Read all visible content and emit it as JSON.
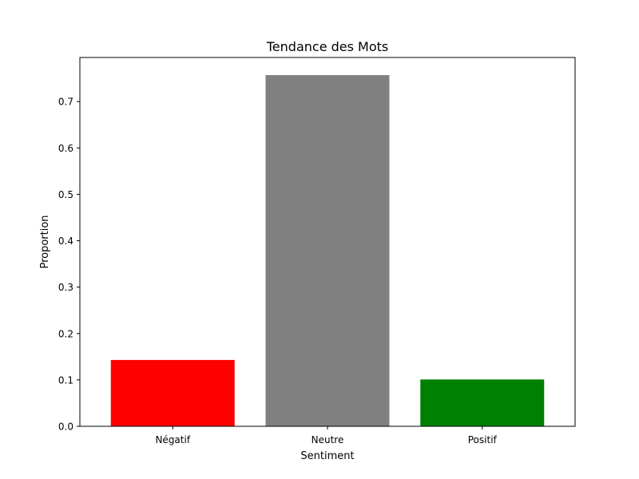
{
  "chart_data": {
    "type": "bar",
    "title": "Tendance des Mots",
    "xlabel": "Sentiment",
    "ylabel": "Proportion",
    "categories": [
      "Négatif",
      "Neutre",
      "Positif"
    ],
    "values": [
      0.143,
      0.757,
      0.101
    ],
    "colors": [
      "#ff0000",
      "#808080",
      "#008000"
    ],
    "ylim": [
      0,
      0.795
    ],
    "yticks": [
      0.0,
      0.1,
      0.2,
      0.3,
      0.4,
      0.5,
      0.6,
      0.7
    ],
    "ytick_labels": [
      "0.0",
      "0.1",
      "0.2",
      "0.3",
      "0.4",
      "0.5",
      "0.6",
      "0.7"
    ],
    "grid": false,
    "legend": "none"
  }
}
